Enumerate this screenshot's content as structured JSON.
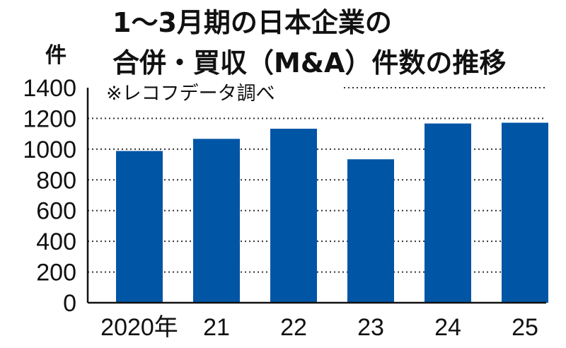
{
  "chart_data": {
    "type": "bar",
    "title_lines": [
      "1～3月期の日本企業の",
      "合併・買収（M&A）件数の推移"
    ],
    "ylabel": "件",
    "source_note": "※レコフデータ調べ",
    "categories": [
      "2020年",
      "21",
      "22",
      "23",
      "24",
      "25"
    ],
    "values": [
      988,
      1067,
      1133,
      934,
      1167,
      1172
    ],
    "yticks": [
      "0",
      "200",
      "400",
      "600",
      "800",
      "1000",
      "1200",
      "1400"
    ],
    "ylim": [
      0,
      1400
    ],
    "grid": true,
    "bar_color": "#0055a5"
  }
}
